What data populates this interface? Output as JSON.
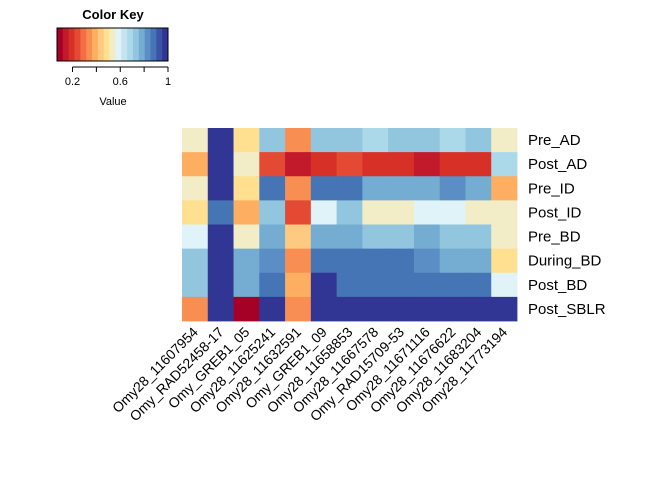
{
  "chart_data": {
    "type": "heatmap",
    "title": "",
    "color_key": {
      "title": "Color Key",
      "xlabel": "Value",
      "tick_labels": [
        "0.2",
        "0.6",
        "1"
      ],
      "tick_values": [
        0.2,
        0.6,
        1.0
      ],
      "range": [
        0.07,
        1.0
      ],
      "colors": [
        "#A50026",
        "#C21A2B",
        "#D73027",
        "#E34933",
        "#F46D43",
        "#F98E52",
        "#FDAE61",
        "#FEC980",
        "#FEE090",
        "#F2EDC6",
        "#E0F3F8",
        "#C6E4F0",
        "#ABD9E9",
        "#92C5DE",
        "#74ADD1",
        "#5B8EC4",
        "#4575B4",
        "#3B53A4",
        "#313695"
      ]
    },
    "rows": [
      "Pre_AD",
      "Post_AD",
      "Pre_ID",
      "Post_ID",
      "Pre_BD",
      "During_BD",
      "Post_BD",
      "Post_SBLR"
    ],
    "columns": [
      "Omy28_11607954",
      "Omy_RAD52458-17",
      "Omy_GREB1_05",
      "Omy28_11625241",
      "Omy28_11632591",
      "Omy_GREB1_09",
      "Omy28_11658853",
      "Omy28_11667578",
      "Omy_RAD15709-53",
      "Omy28_11671116",
      "Omy28_11676622",
      "Omy28_11683204",
      "Omy28_11773194"
    ],
    "values": [
      [
        0.55,
        0.98,
        0.48,
        0.72,
        0.36,
        0.72,
        0.72,
        0.66,
        0.72,
        0.72,
        0.66,
        0.72,
        0.55
      ],
      [
        0.4,
        0.98,
        0.55,
        0.26,
        0.14,
        0.2,
        0.26,
        0.2,
        0.2,
        0.14,
        0.2,
        0.2,
        0.66
      ],
      [
        0.55,
        0.98,
        0.48,
        0.9,
        0.32,
        0.9,
        0.9,
        0.78,
        0.78,
        0.78,
        0.84,
        0.78,
        0.4
      ],
      [
        0.48,
        0.9,
        0.4,
        0.72,
        0.26,
        0.6,
        0.72,
        0.55,
        0.55,
        0.6,
        0.6,
        0.55,
        0.55
      ],
      [
        0.6,
        0.98,
        0.55,
        0.78,
        0.42,
        0.78,
        0.78,
        0.72,
        0.72,
        0.78,
        0.72,
        0.72,
        0.55
      ],
      [
        0.72,
        0.98,
        0.78,
        0.84,
        0.32,
        0.9,
        0.9,
        0.9,
        0.9,
        0.84,
        0.78,
        0.78,
        0.48
      ],
      [
        0.72,
        0.98,
        0.78,
        0.9,
        0.4,
        0.98,
        0.9,
        0.9,
        0.9,
        0.9,
        0.9,
        0.9,
        0.6
      ],
      [
        0.34,
        0.98,
        0.07,
        0.98,
        0.34,
        0.98,
        0.98,
        0.98,
        0.98,
        0.98,
        0.98,
        0.98,
        0.98
      ]
    ]
  }
}
